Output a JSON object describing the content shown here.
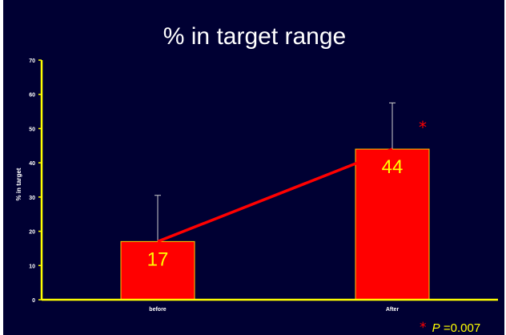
{
  "chart_data": {
    "type": "bar",
    "title": "% in target range",
    "ylabel": "% in target",
    "xlabel": "",
    "categories": [
      "before",
      "After"
    ],
    "series": [
      {
        "values": [
          17,
          44
        ],
        "error_high": [
          30.5,
          57.5
        ],
        "error_low": [
          3.5,
          30.5
        ]
      }
    ],
    "data_labels": [
      "17",
      "44"
    ],
    "ylim": [
      0,
      70
    ],
    "yticks": [
      0,
      10,
      20,
      30,
      40,
      50,
      60,
      70
    ],
    "grid": false,
    "legend": "none",
    "connecting_line": true,
    "annotations": {
      "significance_star": "*",
      "pvalue_star": "*",
      "pvalue_prefix": "P",
      "pvalue_text": "=0.007"
    },
    "colors": {
      "background": "#000033",
      "bar_fill": "#ff0000",
      "bar_stroke": "#ffcc00",
      "axis": "#ffff00",
      "line": "#ff0000",
      "error_bar": "#cccccc",
      "data_label": "#ffff00",
      "text": "#ffffff",
      "star": "#ff0000"
    }
  }
}
